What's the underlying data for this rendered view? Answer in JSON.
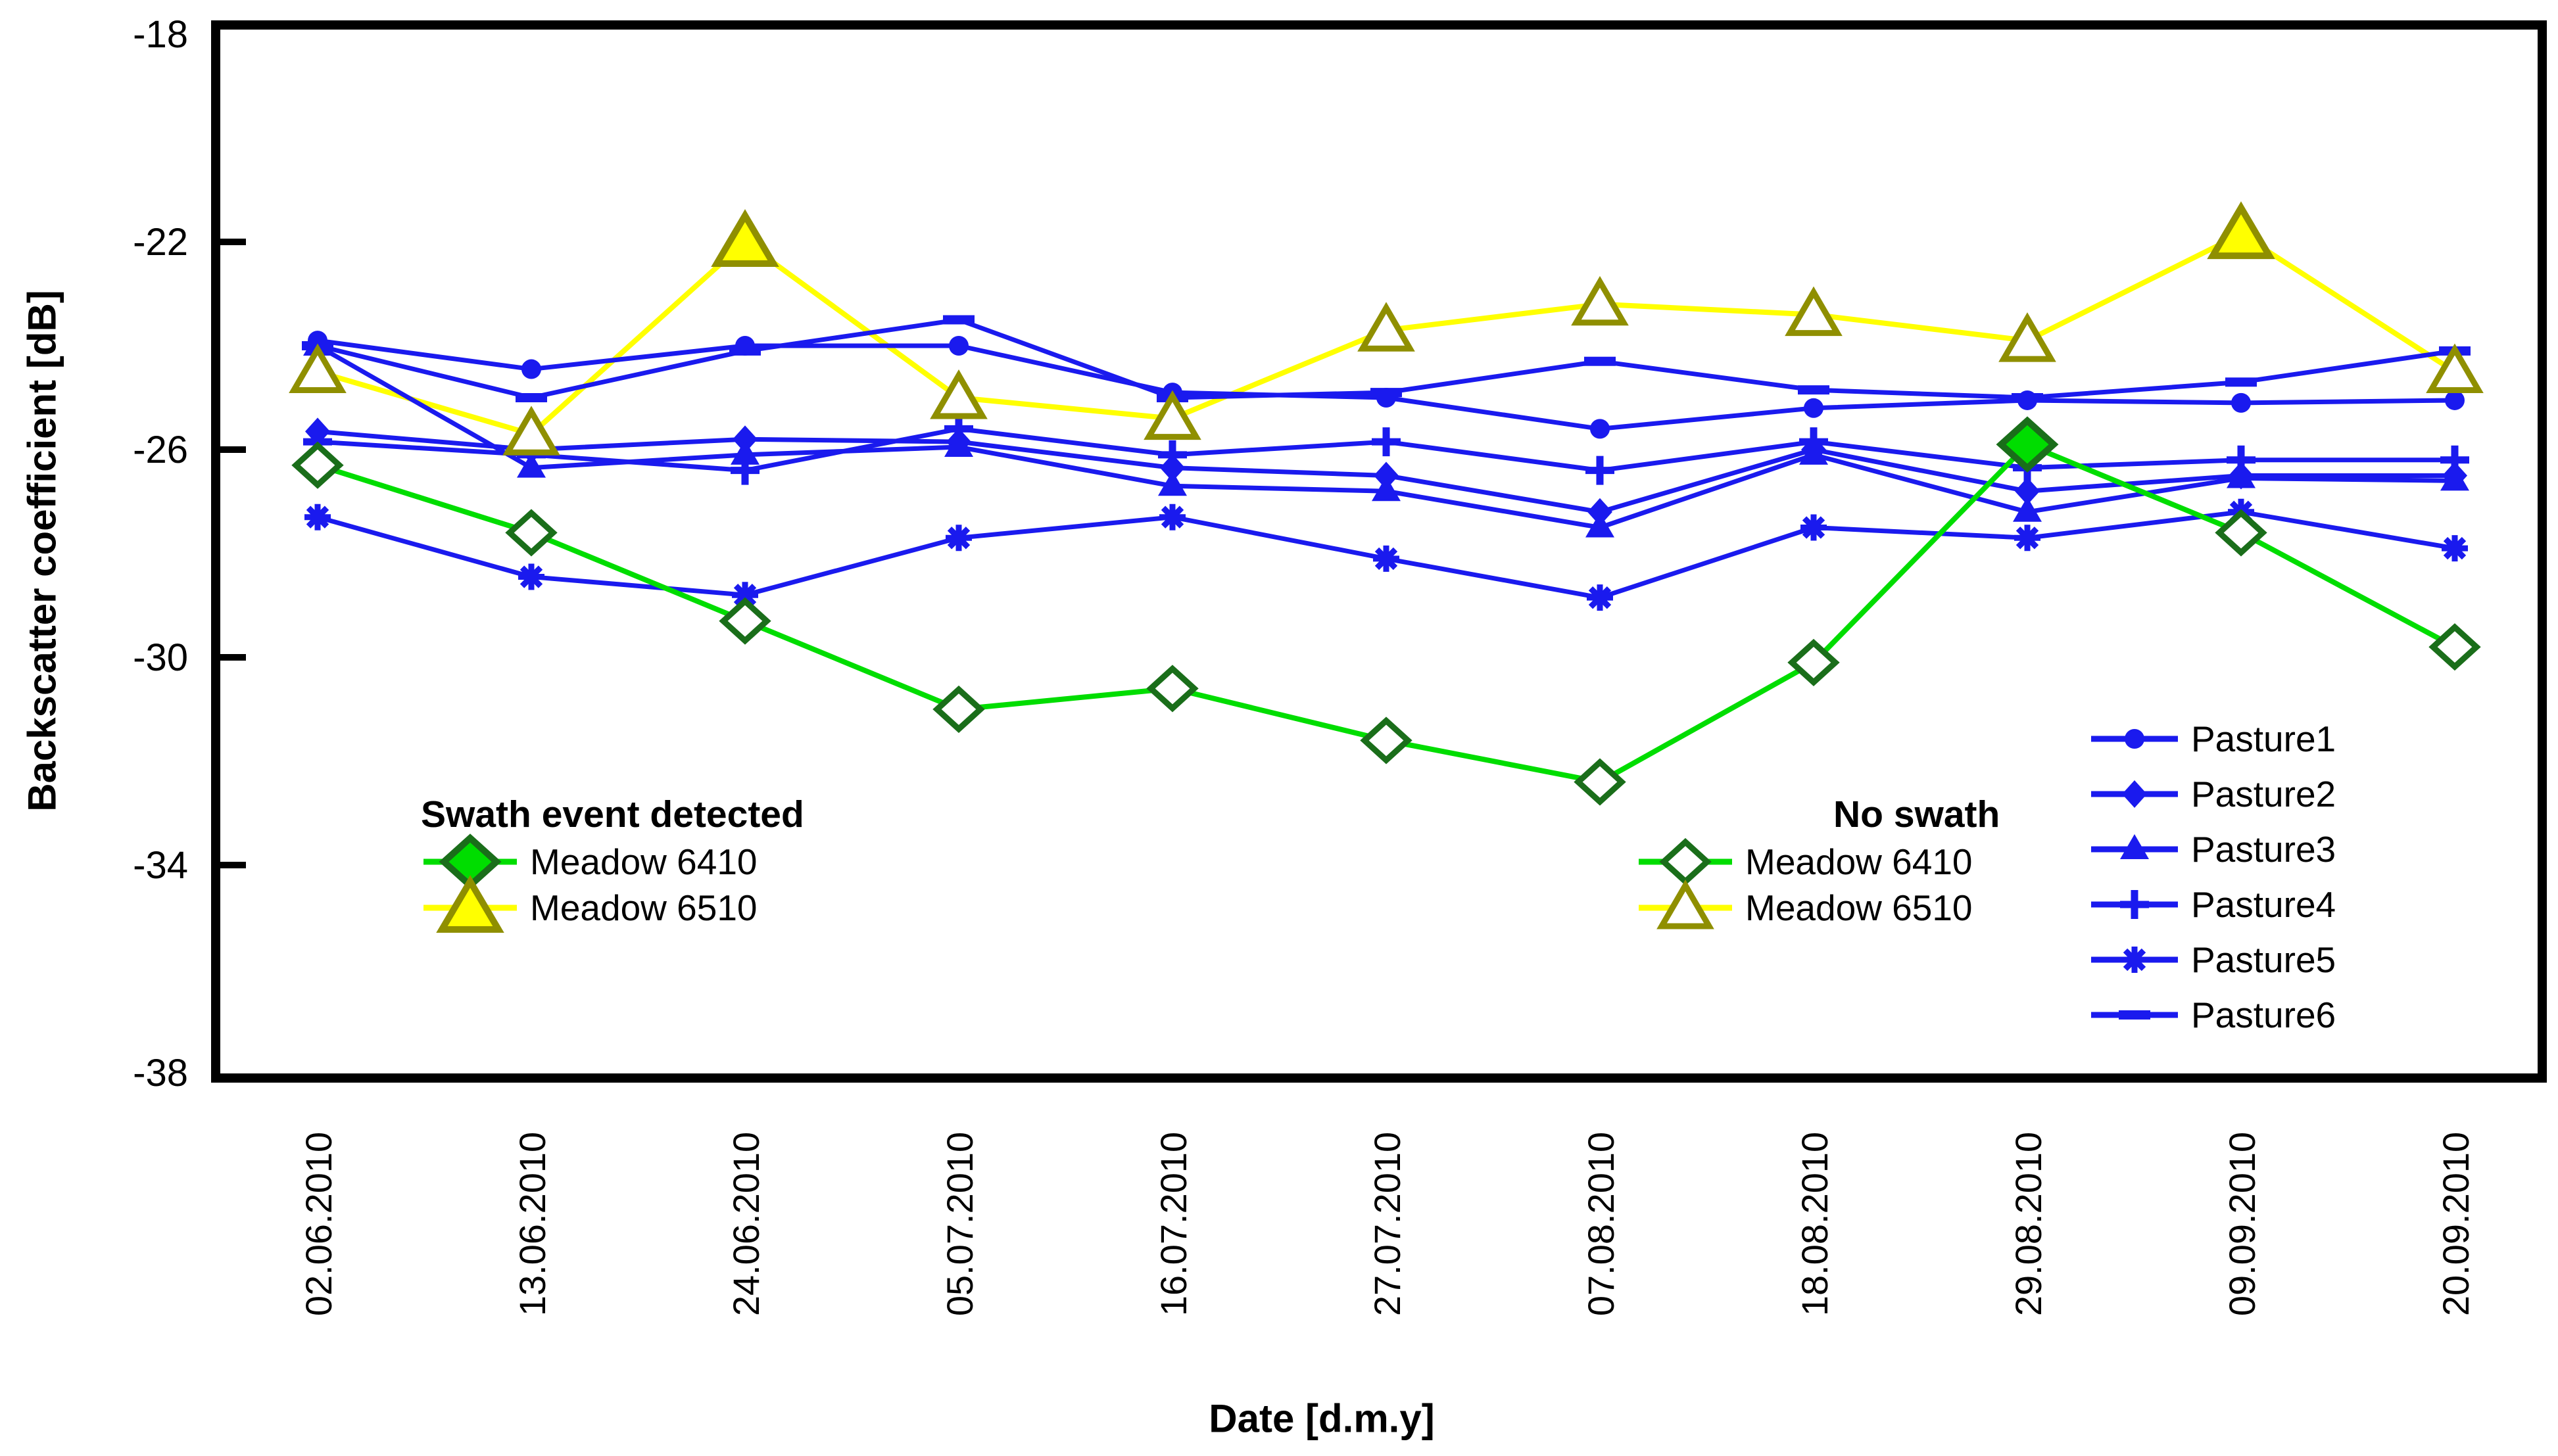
{
  "chart_data": {
    "type": "line",
    "title": "",
    "xlabel": "Date [d.m.y]",
    "ylabel": "Backscatter coefficient [dB]",
    "ylim": [
      -38,
      -18
    ],
    "yticks": [
      -18,
      -22,
      -26,
      -30,
      -34,
      -38
    ],
    "grid": "off",
    "categories": [
      "02.06.2010",
      "13.06.2010",
      "24.06.2010",
      "05.07.2010",
      "16.07.2010",
      "27.07.2010",
      "07.08.2010",
      "18.08.2010",
      "29.08.2010",
      "09.09.2010",
      "20.09.2010"
    ],
    "series": [
      {
        "name": "Pasture1",
        "marker": "circle",
        "color": "#1a1aee",
        "values": [
          -23.9,
          -24.45,
          -24.0,
          -24.0,
          -24.9,
          -25.0,
          -25.6,
          -25.2,
          -25.05,
          -25.1,
          -25.05
        ]
      },
      {
        "name": "Pasture2",
        "marker": "diamond",
        "color": "#1a1aee",
        "values": [
          -25.65,
          -26.0,
          -25.8,
          -25.85,
          -26.35,
          -26.5,
          -27.2,
          -26.0,
          -26.8,
          -26.5,
          -26.5
        ]
      },
      {
        "name": "Pasture3",
        "marker": "triangle",
        "color": "#1a1aee",
        "values": [
          -24.0,
          -26.35,
          -26.1,
          -25.95,
          -26.7,
          -26.8,
          -27.5,
          -26.1,
          -27.2,
          -26.55,
          -26.6
        ]
      },
      {
        "name": "Pasture4",
        "marker": "plus",
        "color": "#1a1aee",
        "values": [
          -25.85,
          -26.1,
          -26.4,
          -25.6,
          -26.1,
          -25.85,
          -26.4,
          -25.85,
          -26.35,
          -26.2,
          -26.2
        ]
      },
      {
        "name": "Pasture5",
        "marker": "star",
        "color": "#1a1aee",
        "values": [
          -27.3,
          -28.45,
          -28.8,
          -27.7,
          -27.3,
          -28.1,
          -28.85,
          -27.5,
          -27.7,
          -27.2,
          -27.9
        ]
      },
      {
        "name": "Pasture6",
        "marker": "dash",
        "color": "#1a1aee",
        "values": [
          -24.0,
          -25.0,
          -24.1,
          -23.5,
          -25.0,
          -24.9,
          -24.3,
          -24.85,
          -25.0,
          -24.7,
          -24.1
        ]
      },
      {
        "name": "Meadow 6410",
        "marker": "diamond-open",
        "color": "#00dd00",
        "edge": "#1a6e1a",
        "swath_indices": [
          8
        ],
        "values": [
          -26.3,
          -27.6,
          -29.3,
          -31.0,
          -30.6,
          -31.6,
          -32.4,
          -30.1,
          -25.9,
          -27.6,
          -29.8
        ]
      },
      {
        "name": "Meadow 6510",
        "marker": "triangle-open",
        "color": "#ffff00",
        "edge": "#8f8f00",
        "swath_indices": [
          2,
          9
        ],
        "values": [
          -24.5,
          -25.7,
          -22.0,
          -25.0,
          -25.4,
          -23.7,
          -23.2,
          -23.4,
          -23.9,
          -21.85,
          -24.5
        ]
      }
    ],
    "legends": {
      "swath": {
        "title": "Swath event detected",
        "items": [
          "Meadow 6410",
          "Meadow 6510"
        ]
      },
      "no_swath": {
        "title": "No swath",
        "items": [
          "Meadow 6410",
          "Meadow 6510"
        ]
      },
      "pastures": {
        "items": [
          "Pasture1",
          "Pasture2",
          "Pasture3",
          "Pasture4",
          "Pasture5",
          "Pasture6"
        ]
      }
    },
    "colors": {
      "pasture_blue": "#1a1aee",
      "meadow_green": "#00dd00",
      "meadow_green_edge": "#1a6e1a",
      "meadow_yellow": "#ffff00",
      "meadow_yellow_edge": "#8f8f00",
      "axis": "#000000"
    }
  }
}
